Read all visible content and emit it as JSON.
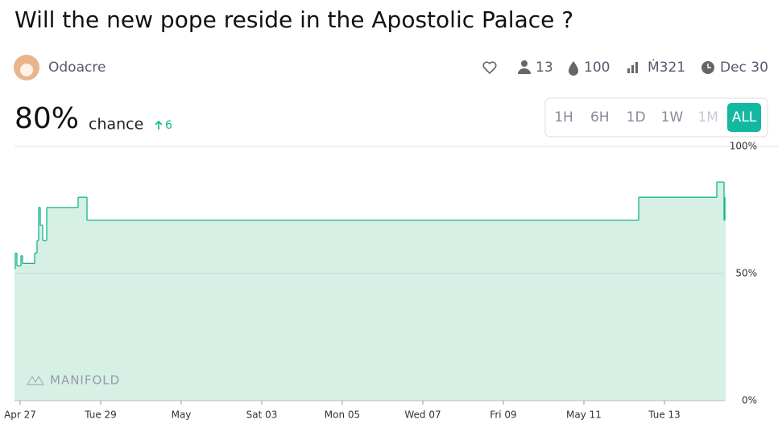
{
  "header": {
    "title": "Will the new pope reside in the Apostolic Palace ?",
    "user": "Odoacre",
    "stats": {
      "traders": "13",
      "liquidity": "100",
      "volume": "Ṁ321",
      "close": "Dec 30"
    }
  },
  "probability": {
    "value": "80%",
    "label": "chance",
    "change": "6"
  },
  "time_buttons": [
    "1H",
    "6H",
    "1D",
    "1W",
    "1M",
    "ALL"
  ],
  "watermark": "MANIFOLD",
  "chart_data": {
    "type": "step-area",
    "color": "#11b68a",
    "x": [
      26.86,
      26.88,
      26.92,
      27.02,
      27.06,
      27.36,
      27.42,
      27.46,
      27.5,
      27.56,
      27.66,
      28.44,
      28.66,
      42.36,
      44.3,
      44.48,
      44.5
    ],
    "values": [
      52,
      58,
      53,
      57,
      54,
      58,
      63,
      76,
      69,
      63,
      76,
      80,
      71,
      80,
      86,
      71,
      80
    ],
    "xlim": [
      26.86,
      44.5
    ],
    "xticks": [
      {
        "value": 27,
        "label": "Apr 27"
      },
      {
        "value": 29,
        "label": "Tue 29"
      },
      {
        "value": 31,
        "label": "May"
      },
      {
        "value": 33,
        "label": "Sat 03"
      },
      {
        "value": 35,
        "label": "Mon 05"
      },
      {
        "value": 37,
        "label": "Wed 07"
      },
      {
        "value": 39,
        "label": "Fri 09"
      },
      {
        "value": 41,
        "label": "May 11"
      },
      {
        "value": 43,
        "label": "Tue 13"
      }
    ],
    "ylim": [
      0,
      100
    ],
    "yticks": [
      {
        "value": 0,
        "label": "0%"
      },
      {
        "value": 50,
        "label": "50%"
      },
      {
        "value": 100,
        "label": "100%"
      }
    ]
  }
}
